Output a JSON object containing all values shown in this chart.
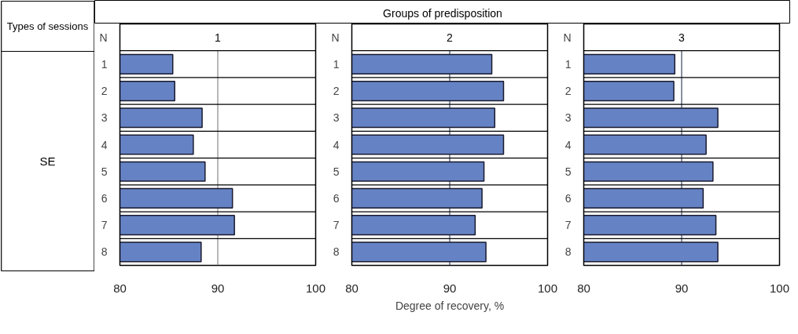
{
  "chart_data": [
    {
      "type": "bar",
      "orientation": "horizontal",
      "title": "1",
      "ylabel": "N",
      "categories": [
        "1",
        "2",
        "3",
        "4",
        "5",
        "6",
        "7",
        "8"
      ],
      "color": "#6583c4",
      "values": [
        85.4,
        85.6,
        88.4,
        87.5,
        88.7,
        91.5,
        91.7,
        88.3
      ],
      "xlim": [
        80,
        100
      ],
      "xticks": [
        80,
        90,
        100
      ],
      "ref_lines": [
        {
          "axis": "x",
          "value": 90,
          "color": "#888888"
        }
      ],
      "annotations": [
        "Types of sessions",
        "Groups of predisposition",
        "SE"
      ]
    },
    {
      "type": "bar",
      "orientation": "horizontal",
      "title": "2",
      "ylabel": "N",
      "xlabel": "Degree of recovery, %",
      "categories": [
        "1",
        "2",
        "3",
        "4",
        "5",
        "6",
        "7",
        "8"
      ],
      "color": "#6583c4",
      "values": [
        94.3,
        95.5,
        94.6,
        95.5,
        93.5,
        93.3,
        92.6,
        93.7
      ],
      "xlim": [
        80,
        100
      ],
      "xticks": [
        80,
        90,
        100
      ],
      "ref_lines": [
        {
          "axis": "x",
          "value": 90,
          "color": "#3a4560"
        }
      ]
    },
    {
      "type": "bar",
      "orientation": "horizontal",
      "title": "3",
      "ylabel": "N",
      "categories": [
        "1",
        "2",
        "3",
        "4",
        "5",
        "6",
        "7",
        "8"
      ],
      "color": "#6583c4",
      "values": [
        89.3,
        89.2,
        93.7,
        92.5,
        93.2,
        92.2,
        93.5,
        93.7
      ],
      "xlim": [
        80,
        100
      ],
      "xticks": [
        80,
        90,
        100
      ],
      "ref_lines": [
        {
          "axis": "x",
          "value": 90,
          "color": "#3a4560"
        }
      ]
    }
  ]
}
